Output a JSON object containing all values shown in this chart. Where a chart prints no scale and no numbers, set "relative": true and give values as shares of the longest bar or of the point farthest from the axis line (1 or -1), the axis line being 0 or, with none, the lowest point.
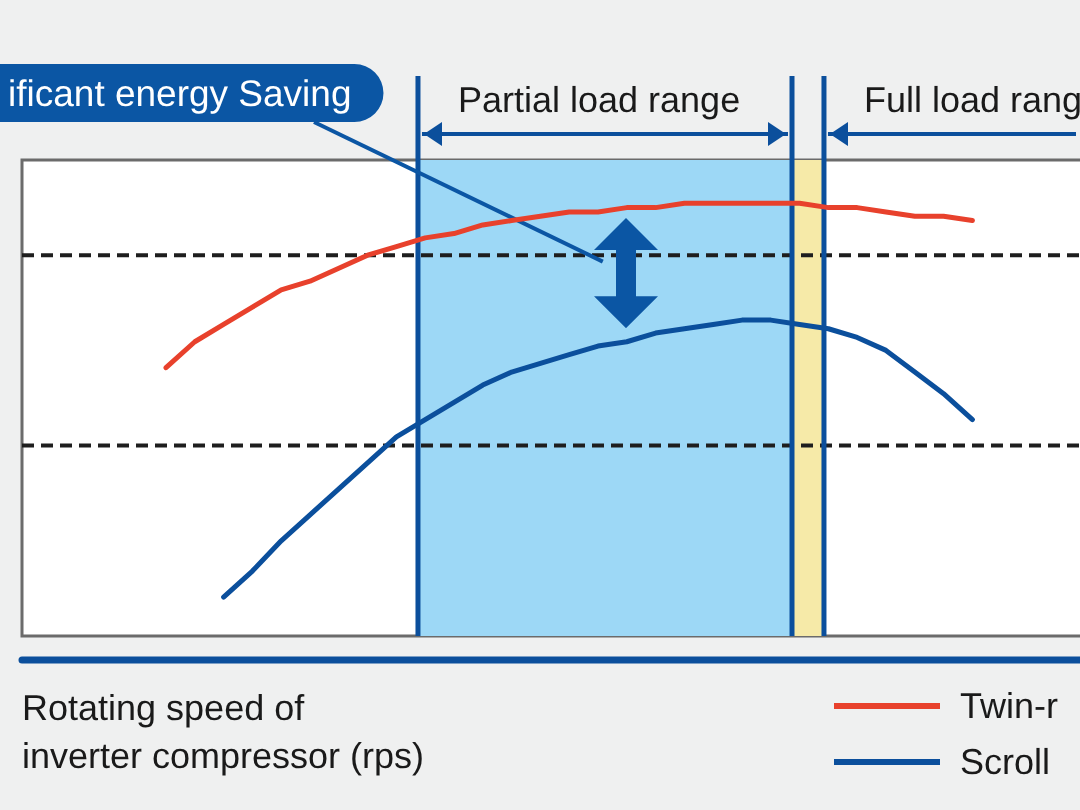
{
  "chart_data": {
    "type": "line",
    "relative": true,
    "marker": "none",
    "legend": "bottom right",
    "xlabel": "Rotating speed of\ninverter compressor (rps)",
    "annotations": [
      "ificant energy Saving",
      "Partial load range",
      "Full load rang"
    ],
    "categories": [
      null,
      null,
      null,
      null,
      null,
      null,
      null,
      null,
      null,
      null,
      null,
      null,
      null,
      null,
      null,
      null,
      null,
      null,
      null,
      null,
      null,
      null,
      null,
      null,
      null,
      null,
      null,
      null,
      null,
      null,
      null,
      null,
      null,
      null,
      null,
      null,
      null,
      null
    ],
    "series": [
      {
        "name": "Twin-r",
        "color": "#e8412c",
        "values": [
          null,
          null,
          null,
          null,
          null,
          0.62,
          0.68,
          0.72,
          0.76,
          0.8,
          0.82,
          0.85,
          0.88,
          0.9,
          0.92,
          0.93,
          0.95,
          0.96,
          0.97,
          0.98,
          0.98,
          0.99,
          0.99,
          1.0,
          1.0,
          1.0,
          1.0,
          1.0,
          0.99,
          0.99,
          0.98,
          0.97,
          0.97,
          0.96,
          null,
          null,
          null,
          null
        ]
      },
      {
        "name": "Scroll",
        "color": "#0b4f9c",
        "values": [
          null,
          null,
          null,
          null,
          null,
          null,
          null,
          0.09,
          0.15,
          0.22,
          0.28,
          0.34,
          0.4,
          0.46,
          0.5,
          0.54,
          0.58,
          0.61,
          0.63,
          0.65,
          0.67,
          0.68,
          0.7,
          0.71,
          0.72,
          0.73,
          0.73,
          0.72,
          0.71,
          0.69,
          0.66,
          0.61,
          0.56,
          0.5,
          null,
          null,
          null,
          null
        ]
      }
    ],
    "ref_lines": [
      {
        "axis": "y",
        "value": 0.88,
        "color": "#1e1e1e",
        "line_style": "dashed"
      },
      {
        "axis": "y",
        "value": 0.44,
        "color": "#1e1e1e",
        "line_style": "dashed"
      }
    ]
  }
}
